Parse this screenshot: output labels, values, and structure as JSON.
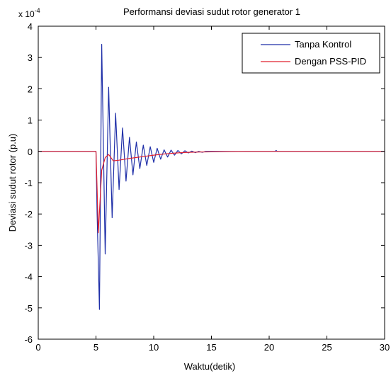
{
  "chart_data": {
    "type": "line",
    "title": "Performansi deviasi sudut rotor generator 1",
    "xlabel": "Waktu(detik)",
    "ylabel": "Deviasi sudut rotor (p.u)",
    "y_exponent_label": "x 10",
    "y_exponent_power": "-4",
    "xlim": [
      0,
      30
    ],
    "ylim": [
      -6,
      4
    ],
    "x_ticks": [
      0,
      5,
      10,
      15,
      20,
      25,
      30
    ],
    "y_ticks": [
      -6,
      -5,
      -4,
      -3,
      -2,
      -1,
      0,
      1,
      2,
      3,
      4
    ],
    "x_tick_labels": [
      "0",
      "5",
      "10",
      "15",
      "20",
      "25",
      "30"
    ],
    "y_tick_labels": [
      "-6",
      "-5",
      "-4",
      "-3",
      "-2",
      "-1",
      "0",
      "1",
      "2",
      "3",
      "4"
    ],
    "grid": false,
    "legend_position": "top-right",
    "series": [
      {
        "name": "Tanpa Kontrol",
        "color": "#1f2fa8",
        "x": [
          0,
          5.0,
          5.1,
          5.3,
          5.5,
          5.8,
          6.1,
          6.4,
          6.7,
          7.0,
          7.3,
          7.6,
          7.9,
          8.2,
          8.5,
          8.8,
          9.1,
          9.4,
          9.7,
          10.0,
          10.3,
          10.6,
          10.9,
          11.2,
          11.5,
          11.8,
          12.1,
          12.4,
          12.7,
          13.0,
          13.3,
          13.6,
          13.9,
          14.2,
          14.5,
          14.8,
          20.5,
          20.6,
          20.7,
          30
        ],
        "y": [
          0,
          0,
          -2.0,
          -5.05,
          3.42,
          -3.28,
          2.05,
          -2.12,
          1.22,
          -1.22,
          0.75,
          -0.95,
          0.45,
          -0.75,
          0.3,
          -0.55,
          0.2,
          -0.45,
          0.15,
          -0.35,
          0.1,
          -0.25,
          0.05,
          -0.18,
          0.04,
          -0.12,
          0.03,
          -0.08,
          0.02,
          -0.05,
          0.01,
          -0.04,
          0.0,
          -0.03,
          0.0,
          0.0,
          0.0,
          0.03,
          0.0,
          0.0
        ]
      },
      {
        "name": "Dengan PSS-PID",
        "color": "#e0202f",
        "x": [
          0,
          5.0,
          5.1,
          5.2,
          5.35,
          5.5,
          5.8,
          6.1,
          6.5,
          7.0,
          7.5,
          8.0,
          9.0,
          10.0,
          11.0,
          12.0,
          13.0,
          14.0,
          16.0,
          18.0,
          20.0,
          30
        ],
        "y": [
          0,
          0,
          -1.2,
          -2.6,
          -1.6,
          -0.6,
          -0.2,
          -0.1,
          -0.3,
          -0.28,
          -0.25,
          -0.22,
          -0.17,
          -0.12,
          -0.08,
          -0.05,
          -0.03,
          -0.02,
          -0.01,
          0.0,
          0.0,
          0.0
        ]
      }
    ]
  }
}
